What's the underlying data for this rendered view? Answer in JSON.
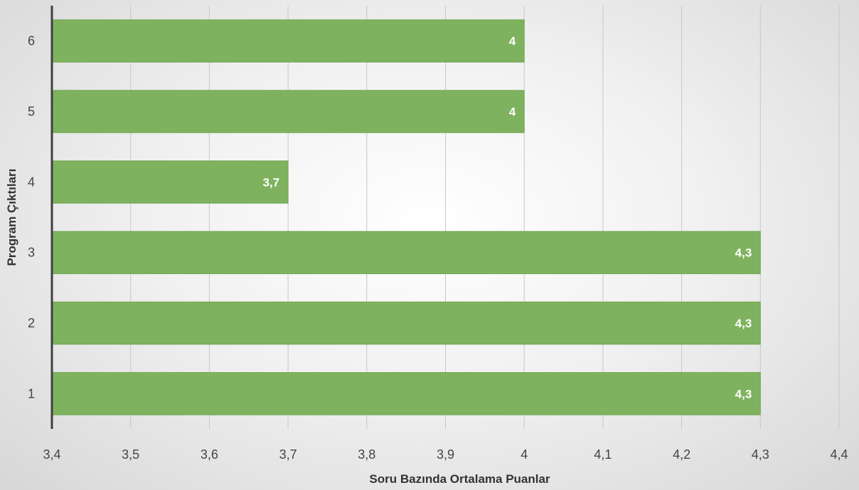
{
  "chart_data": {
    "type": "bar",
    "orientation": "horizontal",
    "categories": [
      "1",
      "2",
      "3",
      "4",
      "5",
      "6"
    ],
    "values": [
      4.3,
      4.3,
      4.3,
      3.7,
      4.0,
      4.0
    ],
    "data_labels": [
      "4,3",
      "4,3",
      "4,3",
      "3,7",
      "4",
      "4"
    ],
    "x_ticks": [
      3.4,
      3.5,
      3.6,
      3.7,
      3.8,
      3.9,
      4.0,
      4.1,
      4.2,
      4.3,
      4.4
    ],
    "x_tick_labels": [
      "3,4",
      "3,5",
      "3,6",
      "3,7",
      "3,8",
      "3,9",
      "4",
      "4,1",
      "4,2",
      "4,3",
      "4,4"
    ],
    "xlim": [
      3.4,
      4.4
    ],
    "xlabel": "Soru Bazında Ortalama Puanlar",
    "ylabel": "Program Çıktıları",
    "title": "",
    "grid": true,
    "legend": "none",
    "bar_color": "#7fb25e",
    "bar_border_color": "#70a853",
    "axis_color": "#404040",
    "grid_color": "#c8c8c8"
  }
}
